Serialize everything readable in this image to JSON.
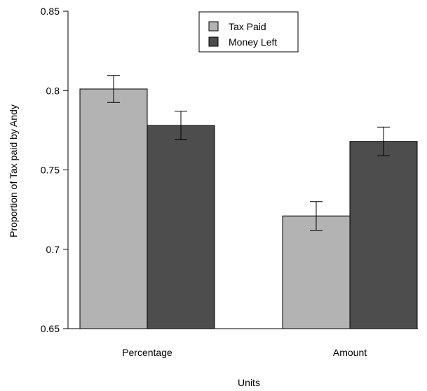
{
  "chart_data": {
    "type": "bar",
    "categories": [
      "Percentage",
      "Amount"
    ],
    "series": [
      {
        "name": "Tax Paid",
        "values": [
          0.801,
          0.721
        ],
        "errors": [
          0.0085,
          0.009
        ],
        "color": "#b3b3b3"
      },
      {
        "name": "Money Left",
        "values": [
          0.778,
          0.768
        ],
        "errors": [
          0.009,
          0.009
        ],
        "color": "#4d4d4d"
      }
    ],
    "xlabel": "Units",
    "ylabel": "Proportion of Tax paid by Andy",
    "ylim": [
      0.65,
      0.85
    ],
    "yticks": [
      0.65,
      0.7,
      0.75,
      0.8,
      0.85
    ],
    "ytick_labels": [
      "0.65",
      "0.7",
      "0.75",
      "0.8",
      "0.85"
    ],
    "grid": false,
    "legend_position": "top-center"
  }
}
